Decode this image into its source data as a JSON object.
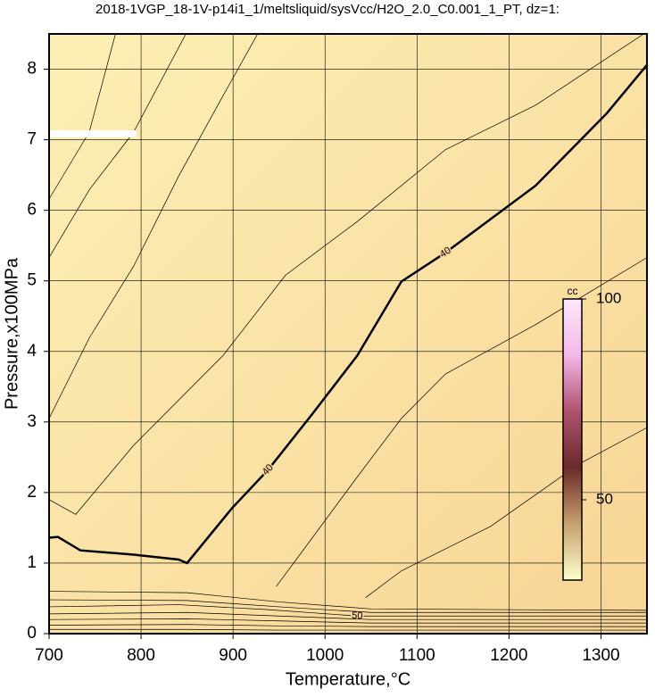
{
  "chart_data": {
    "type": "contour",
    "title": "2018-1VGP_18-1V-p14i1_1/meltsliquid/sysVcc/H2O_2.0_C0.001_1_PT, dz=1:",
    "x_label": "Temperature,°C",
    "y_label": "Pressure,x100MPa",
    "xlim": [
      700,
      1350
    ],
    "ylim": [
      0,
      8.5
    ],
    "xticks": [
      700,
      800,
      900,
      1000,
      1100,
      1200,
      1300
    ],
    "yticks": [
      0,
      1,
      2,
      3,
      4,
      5,
      6,
      7,
      8
    ],
    "grid": true,
    "line_color": "#000000",
    "background": [
      "#fdefb4",
      "#f7d596"
    ],
    "contours": [
      {
        "level": 40,
        "bold": true,
        "x": [
          700,
          709.7,
          734,
          792,
          840.7,
          850,
          899,
          938,
          986,
          1035,
          1083,
          1131,
          1229,
          1306,
          1350
        ],
        "y": [
          1.36,
          1.37,
          1.18,
          1.12,
          1.05,
          1.0,
          1.78,
          2.32,
          3.11,
          3.94,
          4.99,
          5.4,
          6.35,
          7.37,
          8.06
        ]
      },
      {
        "level": 50,
        "x": [
          700,
          840.7,
          938,
          1035,
          1350
        ],
        "y": [
          0.38,
          0.41,
          0.34,
          0.25,
          0.25
        ]
      },
      {
        "x": [
          700,
          743.7,
          792,
          840.7,
          889,
          928
        ],
        "y": [
          3.05,
          4.19,
          5.21,
          6.48,
          7.62,
          8.53
        ]
      },
      {
        "x": [
          700,
          743.7,
          792,
          850
        ],
        "y": [
          5.33,
          6.29,
          7.11,
          8.53
        ]
      },
      {
        "x": [
          700,
          743.7,
          772.8
        ],
        "y": [
          6.16,
          7.11,
          8.53
        ]
      },
      {
        "x": [
          700,
          729,
          792,
          889,
          957,
          1035,
          1131,
          1229,
          1350
        ],
        "y": [
          1.9,
          1.69,
          2.67,
          3.94,
          5.08,
          5.84,
          6.86,
          7.49,
          8.53
        ]
      },
      {
        "x": [
          947,
          967,
          1035,
          1083,
          1131,
          1229,
          1350
        ],
        "y": [
          0.67,
          1.02,
          2.22,
          3.05,
          3.68,
          4.38,
          5.33
        ]
      },
      {
        "x": [
          1044,
          1083,
          1180,
          1277,
          1350
        ],
        "y": [
          0.51,
          0.89,
          1.52,
          2.41,
          2.92
        ]
      },
      {
        "x": [
          700,
          850,
          950,
          1050,
          1350
        ],
        "y": [
          0.6,
          0.58,
          0.45,
          0.35,
          0.33
        ]
      },
      {
        "x": [
          700,
          850,
          950,
          1050,
          1350
        ],
        "y": [
          0.48,
          0.47,
          0.38,
          0.3,
          0.3
        ]
      },
      {
        "x": [
          700,
          850,
          950,
          1050,
          1350
        ],
        "y": [
          0.28,
          0.3,
          0.25,
          0.2,
          0.2
        ]
      },
      {
        "x": [
          700,
          850,
          950,
          1050,
          1350
        ],
        "y": [
          0.2,
          0.21,
          0.18,
          0.15,
          0.15
        ]
      },
      {
        "x": [
          700,
          850,
          950,
          1050,
          1350
        ],
        "y": [
          0.12,
          0.13,
          0.11,
          0.1,
          0.1
        ]
      },
      {
        "x": [
          700,
          850,
          950,
          1050,
          1350
        ],
        "y": [
          0.06,
          0.06,
          0.05,
          0.05,
          0.05
        ]
      }
    ],
    "colorbar": {
      "label": "cc",
      "clim": [
        30,
        100
      ],
      "ticks": [
        50,
        100
      ],
      "colors": [
        "#ffffcc",
        "#c8a070",
        "#6b2a2a",
        "#b05070",
        "#f4b8e8",
        "#fde8fb"
      ]
    }
  }
}
